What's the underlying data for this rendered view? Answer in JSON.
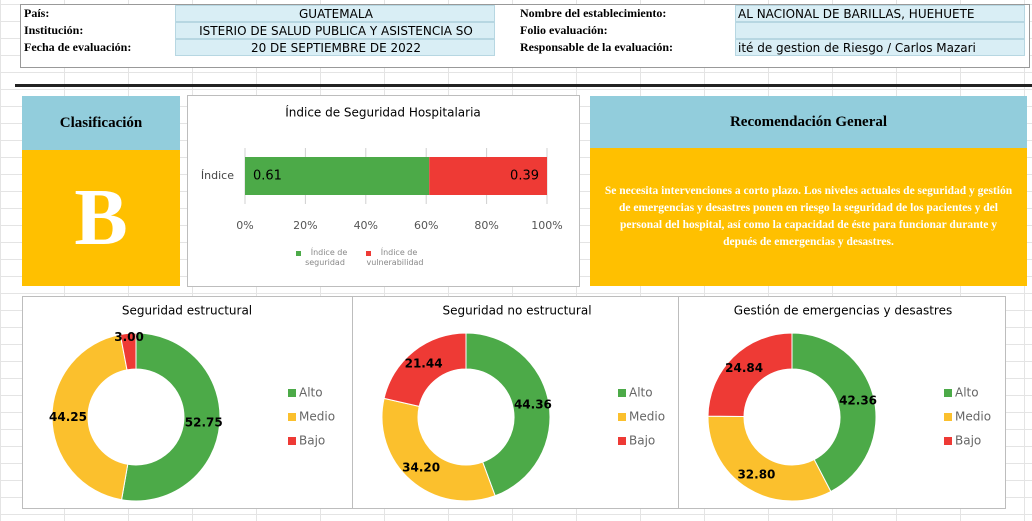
{
  "header": {
    "left": [
      {
        "label": "País:",
        "value": "GUATEMALA"
      },
      {
        "label": "Institución:",
        "value": "ISTERIO DE SALUD PUBLICA Y ASISTENCIA SO"
      },
      {
        "label": "Fecha de evaluación:",
        "value": "20 DE SEPTIEMBRE DE 2022"
      }
    ],
    "right": [
      {
        "label": "Nombre del establecimiento:",
        "value": "AL NACIONAL DE BARILLAS, HUEHUETE"
      },
      {
        "label": "Folio evaluación:"
      },
      {
        "label": "Responsable de la evaluación:",
        "value": "ité de gestion de Riesgo / Carlos Mazari"
      }
    ]
  },
  "classification": {
    "title": "Clasificación",
    "grade": "B"
  },
  "recommendation": {
    "title": "Recomendación General",
    "text": "Se necesita intervenciones a corto plazo. Los niveles actuales de seguridad y gestión de emergencias y desastres ponen en riesgo la seguridad de los pacientes y del personal del hospital, así como la capacidad de éste para funcionar durante y depués de emergencias y desastres."
  },
  "chart_data": [
    {
      "type": "bar",
      "orientation": "horizontal",
      "stacked": true,
      "title": "Índice de Seguridad Hospitalaria",
      "categories": [
        "Índice"
      ],
      "series": [
        {
          "name": "Índice de seguridad",
          "color": "#4caa48",
          "values": [
            0.61
          ]
        },
        {
          "name": "Índice de vulnerabilidad",
          "color": "#ee3a35",
          "values": [
            0.39
          ]
        }
      ],
      "xlim": [
        0,
        1
      ],
      "xticks": [
        {
          "value": 0,
          "label": "0%"
        },
        {
          "value": 0.2,
          "label": "20%"
        },
        {
          "value": 0.4,
          "label": "40%"
        },
        {
          "value": 0.6,
          "label": "60%"
        },
        {
          "value": 0.8,
          "label": "80%"
        },
        {
          "value": 1,
          "label": "100%"
        }
      ],
      "grid": true,
      "legend": "bottom"
    },
    {
      "type": "pie",
      "donut": true,
      "title": "Seguridad estructural",
      "categories": [
        "Alto",
        "Medio",
        "Bajo"
      ],
      "values": [
        52.75,
        44.25,
        3.0
      ],
      "value_labels": [
        "52.75",
        "44.25",
        "3.00"
      ],
      "colors": [
        "#4caa48",
        "#fbc02d",
        "#ee3a35"
      ],
      "legend": "right"
    },
    {
      "type": "pie",
      "donut": true,
      "title": "Seguridad no estructural",
      "categories": [
        "Alto",
        "Medio",
        "Bajo"
      ],
      "values": [
        44.36,
        34.2,
        21.44
      ],
      "value_labels": [
        "44.36",
        "34.20",
        "21.44"
      ],
      "colors": [
        "#4caa48",
        "#fbc02d",
        "#ee3a35"
      ],
      "legend": "right"
    },
    {
      "type": "pie",
      "donut": true,
      "title": "Gestión de emergencias y desastres",
      "categories": [
        "Alto",
        "Medio",
        "Bajo"
      ],
      "values": [
        42.36,
        32.8,
        24.84
      ],
      "value_labels": [
        "42.36",
        "32.80",
        "24.84"
      ],
      "colors": [
        "#4caa48",
        "#fbc02d",
        "#ee3a35"
      ],
      "legend": "right"
    }
  ]
}
